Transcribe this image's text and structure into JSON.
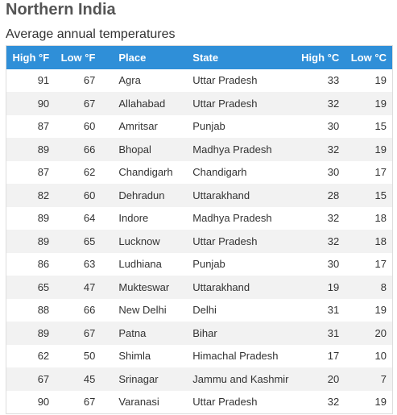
{
  "page": {
    "title": "Northern India",
    "subtitle": "Average annual temperatures"
  },
  "table": {
    "headers": [
      "High °F",
      "Low °F",
      "Place",
      "State",
      "High °C",
      "Low °C"
    ],
    "rows": [
      [
        "91",
        "67",
        "Agra",
        "Uttar Pradesh",
        "33",
        "19"
      ],
      [
        "90",
        "67",
        "Allahabad",
        "Uttar Pradesh",
        "32",
        "19"
      ],
      [
        "87",
        "60",
        "Amritsar",
        "Punjab",
        "30",
        "15"
      ],
      [
        "89",
        "66",
        "Bhopal",
        "Madhya Pradesh",
        "32",
        "19"
      ],
      [
        "87",
        "62",
        "Chandigarh",
        "Chandigarh",
        "30",
        "17"
      ],
      [
        "82",
        "60",
        "Dehradun",
        "Uttarakhand",
        "28",
        "15"
      ],
      [
        "89",
        "64",
        "Indore",
        "Madhya Pradesh",
        "32",
        "18"
      ],
      [
        "89",
        "65",
        "Lucknow",
        "Uttar Pradesh",
        "32",
        "18"
      ],
      [
        "86",
        "63",
        "Ludhiana",
        "Punjab",
        "30",
        "17"
      ],
      [
        "65",
        "47",
        "Mukteswar",
        "Uttarakhand",
        "19",
        "8"
      ],
      [
        "88",
        "66",
        "New Delhi",
        "Delhi",
        "31",
        "19"
      ],
      [
        "89",
        "67",
        "Patna",
        "Bihar",
        "31",
        "20"
      ],
      [
        "62",
        "50",
        "Shimla",
        "Himachal Pradesh",
        "17",
        "10"
      ],
      [
        "67",
        "45",
        "Srinagar",
        "Jammu and Kashmir",
        "20",
        "7"
      ],
      [
        "90",
        "67",
        "Varanasi",
        "Uttar Pradesh",
        "32",
        "19"
      ]
    ]
  },
  "colors": {
    "header_bg": "#2f8fd8",
    "header_text": "#ffffff",
    "stripe": "#f2f2f2"
  }
}
